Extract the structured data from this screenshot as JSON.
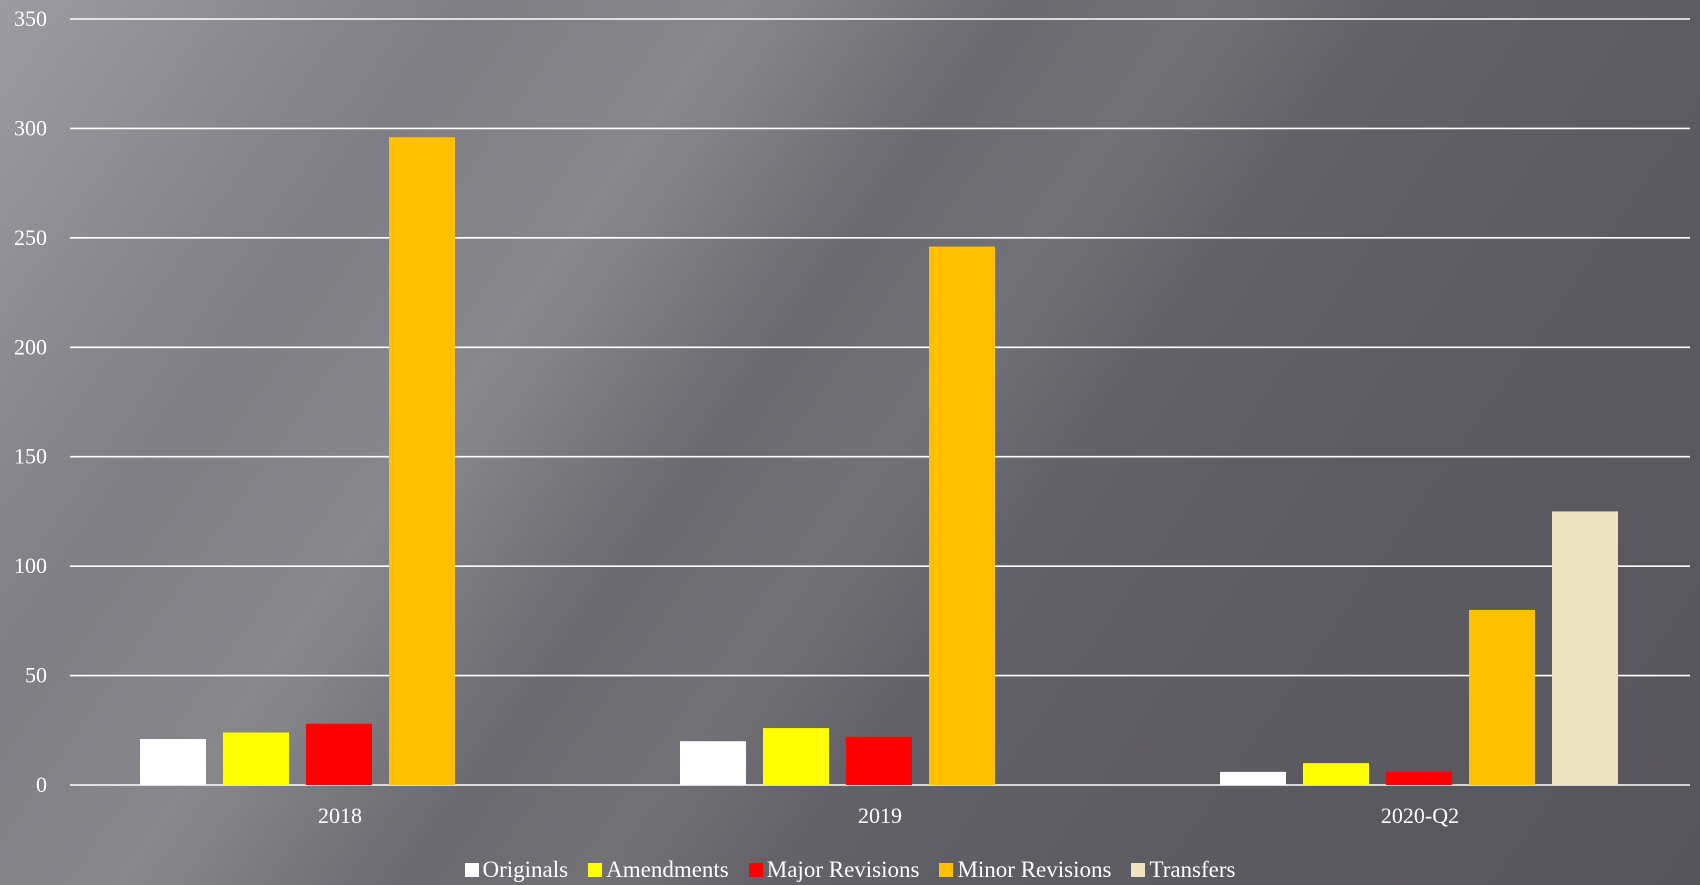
{
  "chart_data": {
    "type": "bar",
    "categories": [
      "2018",
      "2019",
      "2020-Q2"
    ],
    "series": [
      {
        "name": "Originals",
        "color": "#ffffff",
        "values": [
          21,
          20,
          6
        ]
      },
      {
        "name": "Amendments",
        "color": "#ffff00",
        "values": [
          24,
          26,
          10
        ]
      },
      {
        "name": "Major Revisions",
        "color": "#ff0000",
        "values": [
          28,
          22,
          6
        ]
      },
      {
        "name": "Minor Revisions",
        "color": "#ffc000",
        "values": [
          296,
          246,
          80
        ]
      },
      {
        "name": "Transfers",
        "color": "#ede3c0",
        "values": [
          null,
          null,
          125
        ]
      }
    ],
    "ylim": [
      0,
      350
    ],
    "yticks": [
      "0",
      "50",
      "100",
      "150",
      "200",
      "250",
      "300",
      "350"
    ],
    "grid": true,
    "legend_position": "bottom",
    "title": "",
    "xlabel": "",
    "ylabel": ""
  }
}
